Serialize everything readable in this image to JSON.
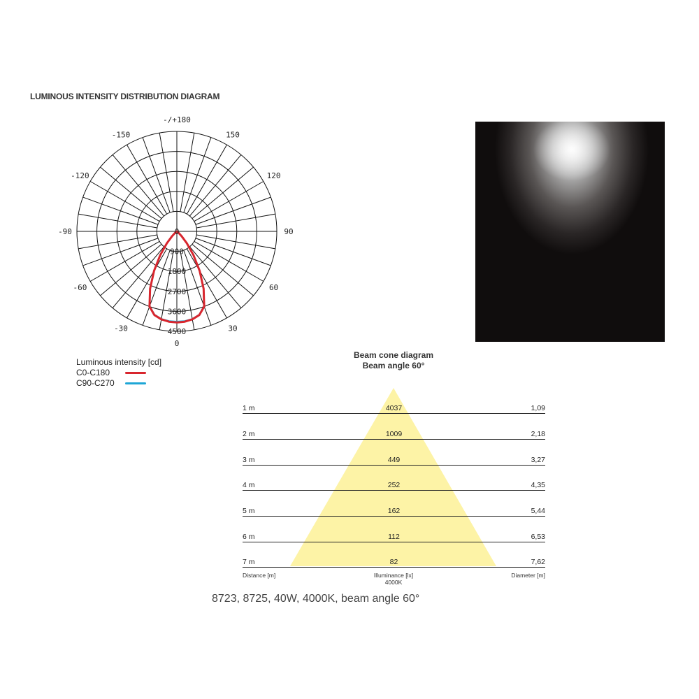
{
  "title": "LUMINOUS INTENSITY DISTRIBUTION DIAGRAM",
  "chart_data": [
    {
      "type": "polar-line",
      "angle_labels": [
        "-/+180",
        "-150",
        "150",
        "-120",
        "120",
        "-90",
        "90",
        "-60",
        "60",
        "-30",
        "30",
        "0"
      ],
      "radial_ticks": [
        "0",
        "900",
        "1800",
        "2700",
        "3600",
        "4500"
      ],
      "radial_max": 4500,
      "angle_step_grid": 10,
      "grid": true,
      "legend_title": "Luminous intensity [cd]",
      "series": [
        {
          "name": "C0-C180",
          "color": "#d8262e",
          "angles": [
            0,
            5,
            10,
            15,
            20,
            25,
            30,
            35,
            40,
            45,
            50,
            55,
            60,
            90
          ],
          "values": [
            4100,
            4080,
            4020,
            3900,
            3600,
            2850,
            2050,
            1300,
            700,
            300,
            100,
            30,
            0,
            0
          ]
        },
        {
          "name": "C90-C270",
          "color": "#1ea6d6",
          "angles": [
            0,
            5,
            10,
            15,
            20,
            25,
            30,
            35,
            40,
            45,
            50,
            55,
            60,
            90
          ],
          "values": [
            4060,
            4050,
            4000,
            3880,
            3580,
            2830,
            2040,
            1290,
            690,
            300,
            100,
            30,
            0,
            0
          ]
        }
      ]
    },
    {
      "type": "table",
      "title": "Beam cone diagram",
      "subtitle": "Beam angle 60°",
      "columns": [
        "Distance [m]",
        "Illuminance [lx]",
        "Diameter [m]"
      ],
      "illuminance_note": "4000K",
      "rows": [
        {
          "distance": "1 m",
          "illuminance": "4037",
          "diameter": "1,09"
        },
        {
          "distance": "2 m",
          "illuminance": "1009",
          "diameter": "2,18"
        },
        {
          "distance": "3 m",
          "illuminance": "449",
          "diameter": "3,27"
        },
        {
          "distance": "4 m",
          "illuminance": "252",
          "diameter": "4,35"
        },
        {
          "distance": "5 m",
          "illuminance": "162",
          "diameter": "5,44"
        },
        {
          "distance": "6 m",
          "illuminance": "112",
          "diameter": "6,53"
        },
        {
          "distance": "7 m",
          "illuminance": "82",
          "diameter": "7,62"
        }
      ],
      "cone_color": "#fdf3a6"
    }
  ],
  "caption": "8723, 8725, 40W, 4000K, beam angle 60°"
}
